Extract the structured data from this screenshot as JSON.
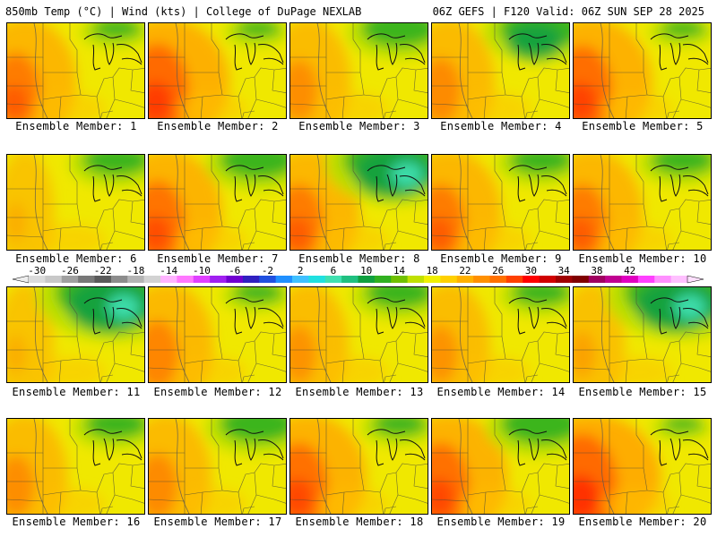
{
  "header": {
    "left": "850mb Temp (°C) | Wind (kts) | College of DuPage NEXLAB",
    "right": "06Z GEFS | F120 Valid: 06Z SUN SEP 28 2025"
  },
  "members": [
    {
      "label": "Ensemble Member: 1",
      "cool": 0.15,
      "warm": 0.55
    },
    {
      "label": "Ensemble Member: 2",
      "cool": 0.1,
      "warm": 0.8
    },
    {
      "label": "Ensemble Member: 3",
      "cool": 0.45,
      "warm": 0.35
    },
    {
      "label": "Ensemble Member: 4",
      "cool": 0.55,
      "warm": 0.4
    },
    {
      "label": "Ensemble Member: 5",
      "cool": 0.1,
      "warm": 0.75
    },
    {
      "label": "Ensemble Member: 6",
      "cool": 0.35,
      "warm": 0.05
    },
    {
      "label": "Ensemble Member: 7",
      "cool": 0.45,
      "warm": 0.65
    },
    {
      "label": "Ensemble Member: 8",
      "cool": 0.85,
      "warm": 0.55
    },
    {
      "label": "Ensemble Member: 9",
      "cool": 0.3,
      "warm": 0.55
    },
    {
      "label": "Ensemble Member: 10",
      "cool": 0.3,
      "warm": 0.55
    },
    {
      "label": "Ensemble Member: 11",
      "cool": 0.95,
      "warm": 0.05
    },
    {
      "label": "Ensemble Member: 12",
      "cool": 0.15,
      "warm": 0.45
    },
    {
      "label": "Ensemble Member: 13",
      "cool": 0.35,
      "warm": 0.3
    },
    {
      "label": "Ensemble Member: 14",
      "cool": 0.25,
      "warm": 0.3
    },
    {
      "label": "Ensemble Member: 15",
      "cool": 0.9,
      "warm": 0.15
    },
    {
      "label": "Ensemble Member: 16",
      "cool": 0.3,
      "warm": 0.35
    },
    {
      "label": "Ensemble Member: 17",
      "cool": 0.45,
      "warm": 0.4
    },
    {
      "label": "Ensemble Member: 18",
      "cool": 0.2,
      "warm": 0.7
    },
    {
      "label": "Ensemble Member: 19",
      "cool": 0.5,
      "warm": 0.7
    },
    {
      "label": "Ensemble Member: 20",
      "cool": 0.05,
      "warm": 0.95
    }
  ],
  "colorbar": {
    "ticks": [
      "-30",
      "-26",
      "-22",
      "-18",
      "-14",
      "-10",
      "-6",
      "-2",
      "2",
      "6",
      "10",
      "14",
      "18",
      "22",
      "26",
      "30",
      "34",
      "38",
      "42"
    ],
    "colors": [
      "#dcdcdc",
      "#c8c8c8",
      "#a0a0a0",
      "#787878",
      "#5a5a5a",
      "#8c8c8c",
      "#b4b4b4",
      "#d2d2d2",
      "#ffb4ff",
      "#ff78ff",
      "#e040ff",
      "#a020f0",
      "#7000d0",
      "#3020c0",
      "#2050e0",
      "#2090ff",
      "#40c0ff",
      "#20e0e0",
      "#40e0b0",
      "#20c080",
      "#10a040",
      "#30b020",
      "#70c000",
      "#c0e000",
      "#f0f000",
      "#ffd000",
      "#ffb000",
      "#ff9000",
      "#ff7000",
      "#ff4000",
      "#ff0000",
      "#d00000",
      "#a00000",
      "#800000",
      "#a00060",
      "#c00090",
      "#e000c0",
      "#ff40ff",
      "#ff90ff",
      "#ffc0ff"
    ]
  }
}
